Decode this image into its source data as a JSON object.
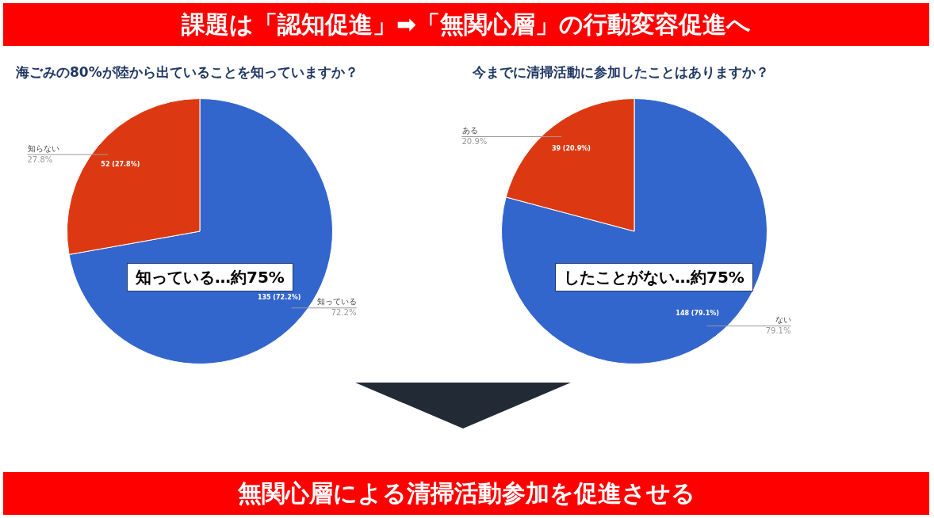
{
  "chart_data": [
    {
      "type": "pie",
      "title": "海ごみの80%が陸から出ていることを知っていますか？",
      "categories": [
        "知っている",
        "知らない"
      ],
      "values": [
        135,
        52
      ],
      "colors": [
        "#3366cc",
        "#dc3912"
      ],
      "value_labels": [
        "135 (72.2%)",
        "52 (27.8%)"
      ],
      "annotations": [
        "課題は「認知促進」➡「無関心層」の行動変容促進へ",
        "知っている…約75%",
        {
          "text": "72.2%",
          "x": "知っている"
        },
        {
          "text": "27.8%",
          "x": "知らない"
        }
      ]
    },
    {
      "type": "pie",
      "title": "今までに清掃活動に参加したことはありますか？",
      "categories": [
        "ない",
        "ある"
      ],
      "values": [
        148,
        39
      ],
      "colors": [
        "#3366cc",
        "#dc3912"
      ],
      "value_labels": [
        "148 (79.1%)",
        "39 (20.9%)"
      ],
      "annotations": [
        {
          "text": "79.1%",
          "x": "ない"
        },
        {
          "text": "20.9%",
          "x": "ある"
        },
        "したことがない…約75%",
        "無関心層による清掃活動参加を促進させる"
      ]
    }
  ]
}
